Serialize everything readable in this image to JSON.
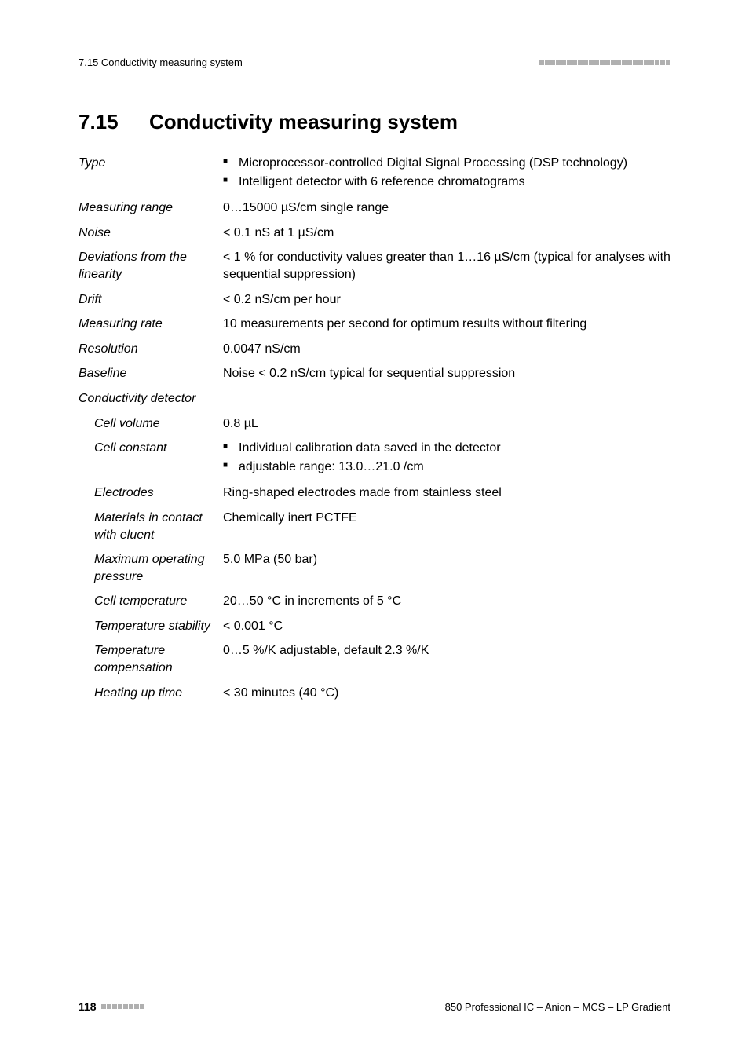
{
  "header": {
    "section_ref": "7.15 Conductivity measuring system"
  },
  "section": {
    "number": "7.15",
    "title": "Conductivity measuring system"
  },
  "specs": {
    "type": {
      "label": "Type",
      "items": [
        "Microprocessor-controlled Digital Signal Processing (DSP technology)",
        "Intelligent detector with 6 reference chromatograms"
      ]
    },
    "measuring_range": {
      "label": "Measuring range",
      "value": "0…15000 µS/cm single range"
    },
    "noise": {
      "label": "Noise",
      "value": "< 0.1 nS at 1 µS/cm"
    },
    "deviations": {
      "label": "Deviations from the linearity",
      "value": "< 1 % for conductivity values greater than 1…16 µS/cm (typical for analyses with sequential suppression)"
    },
    "drift": {
      "label": "Drift",
      "value": "< 0.2 nS/cm per hour"
    },
    "measuring_rate": {
      "label": "Measuring rate",
      "value": "10 measurements per second for optimum results without filtering"
    },
    "resolution": {
      "label": "Resolution",
      "value": "0.0047 nS/cm"
    },
    "baseline": {
      "label": "Baseline",
      "value": "Noise < 0.2 nS/cm typical for sequential suppression"
    },
    "detector_header": {
      "label": "Conductivity detector"
    },
    "cell_volume": {
      "label": "Cell volume",
      "value": "0.8 µL"
    },
    "cell_constant": {
      "label": "Cell constant",
      "items": [
        "Individual calibration data saved in the detector",
        "adjustable range: 13.0…21.0 /cm"
      ]
    },
    "electrodes": {
      "label": "Electrodes",
      "value": "Ring-shaped electrodes made from stainless steel"
    },
    "materials": {
      "label": "Materials in contact with eluent",
      "value": "Chemically inert PCTFE"
    },
    "max_pressure": {
      "label": "Maximum operating pressure",
      "value": "5.0 MPa (50 bar)"
    },
    "cell_temp": {
      "label": "Cell temperature",
      "value": "20…50 °C in increments of 5 °C"
    },
    "temp_stability": {
      "label": "Temperature stability",
      "value": "< 0.001 °C"
    },
    "temp_comp": {
      "label": "Temperature compensation",
      "value": "0…5 %/K adjustable, default 2.3 %/K"
    },
    "heating": {
      "label": "Heating up time",
      "value": "< 30 minutes (40 °C)"
    }
  },
  "footer": {
    "page_number": "118",
    "doc_title": "850 Professional IC – Anion – MCS – LP Gradient"
  },
  "style": {
    "square_count_header": 24,
    "square_count_footer": 8
  }
}
